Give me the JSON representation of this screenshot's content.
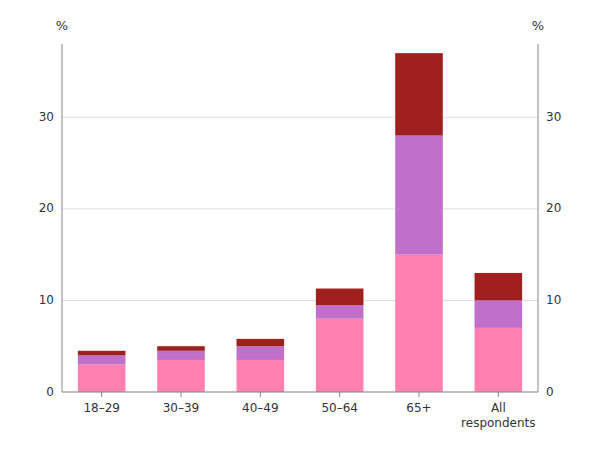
{
  "chart_data": {
    "type": "bar",
    "stacked": true,
    "categories": [
      "18–29",
      "30–39",
      "40–49",
      "50–64",
      "65+",
      "All\nrespondents"
    ],
    "series": [
      {
        "color": "#FF80B0",
        "values": [
          3.0,
          3.5,
          3.5,
          8.0,
          15.0,
          7.0
        ]
      },
      {
        "color": "#C070C8",
        "values": [
          1.0,
          1.0,
          1.5,
          1.5,
          13.0,
          3.0
        ]
      },
      {
        "color": "#A02020",
        "values": [
          0.5,
          0.5,
          0.8,
          1.8,
          9.0,
          3.0
        ]
      }
    ],
    "ylim": [
      0,
      38
    ],
    "yticks": [
      0,
      10,
      20,
      30
    ],
    "y2lim": [
      0,
      38
    ],
    "y2ticks": [
      0,
      10,
      20,
      30
    ],
    "ylabel": "%",
    "y2label": "%",
    "grid": true
  }
}
